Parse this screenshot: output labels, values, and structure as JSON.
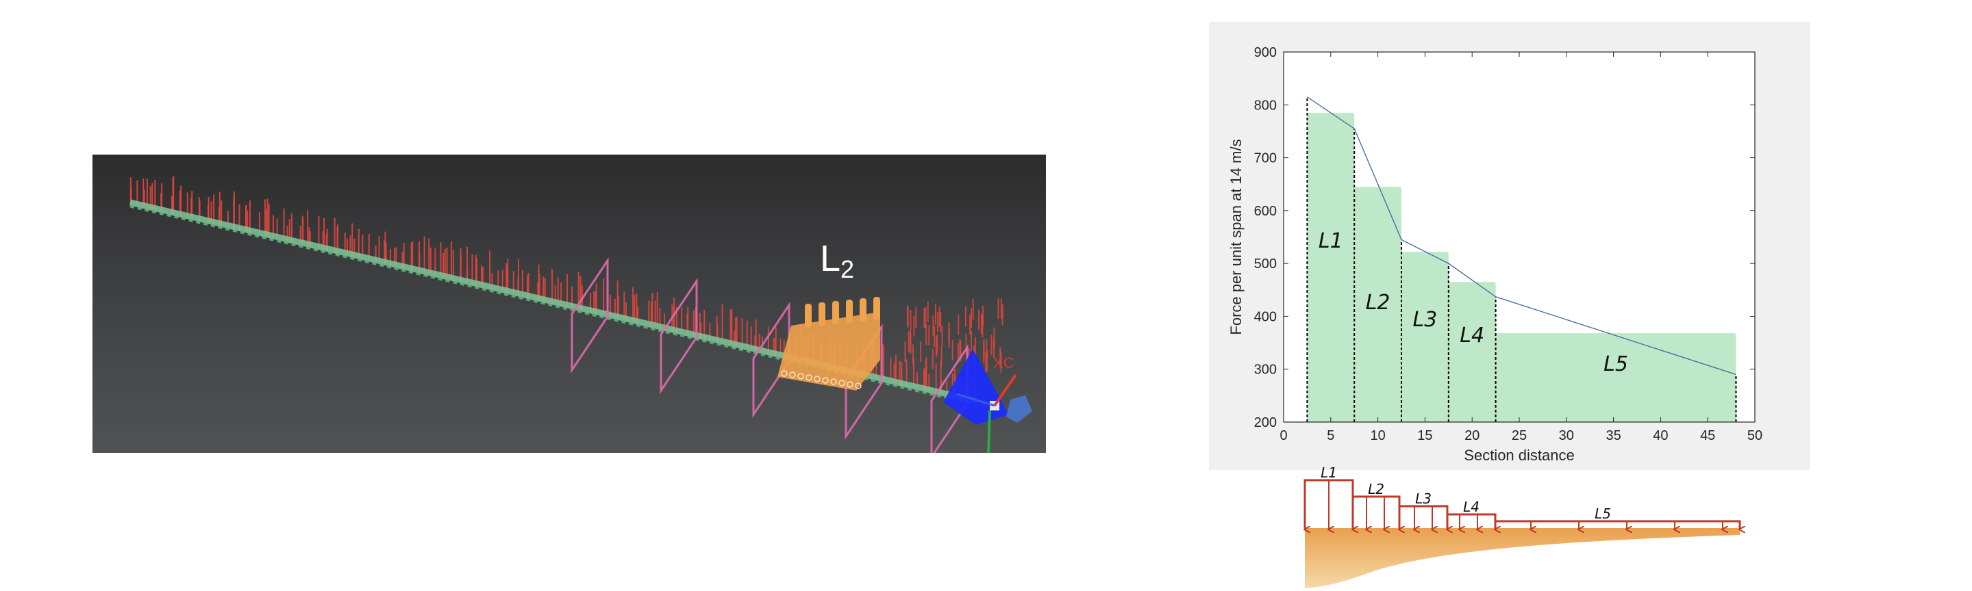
{
  "viewport": {
    "section_label_main": "L",
    "section_label_sub": "2",
    "axis_label": "XC",
    "colors": {
      "beam": "#7fc79a",
      "force_arrows": "#e0463c",
      "section_planes": "#e06ab0",
      "highlight_section": "#f0a24c",
      "root_fixture": "#1a2cff"
    }
  },
  "chart_data": {
    "type": "bar",
    "xlabel": "Section distance",
    "ylabel": "Force per unit span at 14 m/s",
    "xlim": [
      0,
      50
    ],
    "ylim": [
      200,
      900
    ],
    "xticks": [
      "0",
      "5",
      "10",
      "15",
      "20",
      "25",
      "30",
      "35",
      "40",
      "45",
      "50"
    ],
    "yticks": [
      "200",
      "300",
      "400",
      "500",
      "600",
      "700",
      "800",
      "900"
    ],
    "bars": [
      {
        "label": "L1",
        "x_start": 2.5,
        "x_end": 7.5,
        "value": 785
      },
      {
        "label": "L2",
        "x_start": 7.5,
        "x_end": 12.5,
        "value": 645
      },
      {
        "label": "L3",
        "x_start": 12.5,
        "x_end": 17.5,
        "value": 522
      },
      {
        "label": "L4",
        "x_start": 17.5,
        "x_end": 22.5,
        "value": 465
      },
      {
        "label": "L5",
        "x_start": 22.5,
        "x_end": 48,
        "value": 368
      }
    ],
    "line": {
      "x": [
        2.5,
        7.5,
        12.5,
        17.5,
        22.5,
        48
      ],
      "y": [
        815,
        755,
        545,
        500,
        437,
        290
      ]
    },
    "dividers_x": [
      2.5,
      7.5,
      12.5,
      17.5,
      22.5,
      48
    ],
    "colors": {
      "bar": "#bfe8c8",
      "line": "#4a6fa5",
      "divider": "#000000",
      "axes_bg": "#ffffff",
      "panel_bg": "#f0f0f0"
    }
  },
  "beam_diagram": {
    "labels": [
      "L1",
      "L2",
      "L3",
      "L4",
      "L5"
    ],
    "colors": {
      "load": "#c0392b",
      "blade_top": "#e9a04e",
      "blade_bottom": "#f6d9a6"
    }
  }
}
